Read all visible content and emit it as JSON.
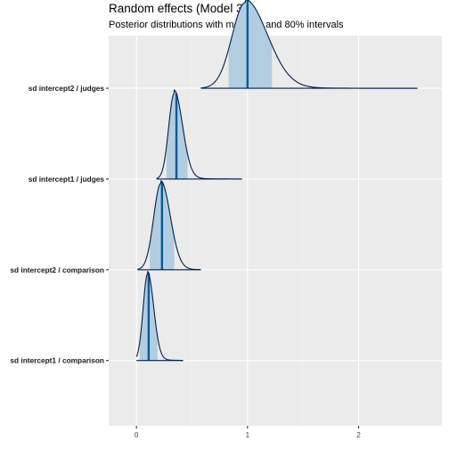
{
  "title": "Random effects (Model 3)",
  "subtitle": "Posterior distributions with medians and 80% intervals",
  "colors": {
    "panel_bg": "#ebebeb",
    "grid_major": "#ffffff",
    "grid_minor": "#f3f3f3",
    "density_line": "#011f4b",
    "interval_fill": "#b3cde0",
    "median_line": "#005b96",
    "tick_text": "#4d4d4d",
    "label_text": "#1a1a1a"
  },
  "chart_data": {
    "type": "ridgeline-density",
    "xlim": [
      -0.25,
      2.75
    ],
    "x_ticks": [
      0,
      1,
      2
    ],
    "x_tick_labels": [
      "0",
      "1",
      "2"
    ],
    "grid": true,
    "legend": "none",
    "series": [
      {
        "name": "sd intercept2 / judges",
        "support": [
          0.58,
          2.53
        ],
        "median": 1.0,
        "interval80": [
          0.83,
          1.22
        ],
        "mode": 0.98,
        "spread_left": 0.12,
        "spread_right": 0.2,
        "tail_scale": 0.25,
        "tail_weight": 0.04
      },
      {
        "name": "sd intercept1 / judges",
        "support": [
          0.18,
          0.95
        ],
        "median": 0.36,
        "interval80": [
          0.27,
          0.46
        ],
        "mode": 0.34,
        "spread_left": 0.05,
        "spread_right": 0.075,
        "tail_scale": 0.12,
        "tail_weight": 0.04
      },
      {
        "name": "sd intercept2 / comparison",
        "support": [
          0.01,
          0.58
        ],
        "median": 0.23,
        "interval80": [
          0.12,
          0.34
        ],
        "mode": 0.22,
        "spread_left": 0.065,
        "spread_right": 0.085,
        "tail_scale": 0.12,
        "tail_weight": 0.03
      },
      {
        "name": "sd intercept1 / comparison",
        "support": [
          0.0,
          0.42
        ],
        "median": 0.11,
        "interval80": [
          0.03,
          0.19
        ],
        "mode": 0.1,
        "spread_left": 0.04,
        "spread_right": 0.055,
        "tail_scale": 0.1,
        "tail_weight": 0.03
      }
    ]
  }
}
